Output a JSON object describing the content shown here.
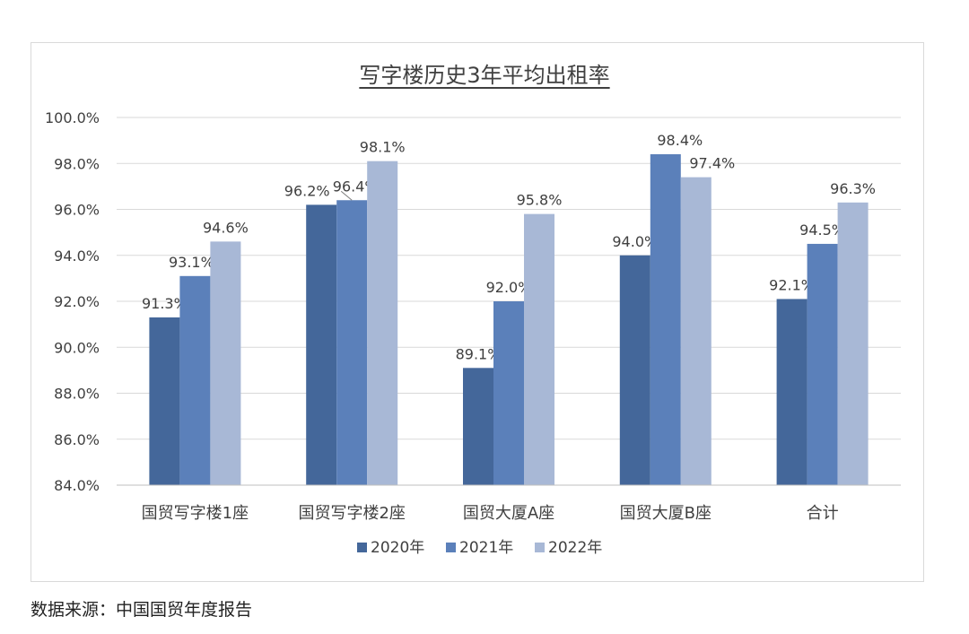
{
  "chart_data": {
    "type": "bar",
    "title": "写字楼历史3年平均出租率",
    "categories": [
      "国贸写字楼1座",
      "国贸写字楼2座",
      "国贸大厦A座",
      "国贸大厦B座",
      "合计"
    ],
    "series": [
      {
        "name": "2020年",
        "color": "#44679a",
        "values": [
          91.3,
          96.2,
          89.1,
          94.0,
          92.1
        ],
        "labels": [
          "91.3%",
          "96.2%",
          "89.1%",
          "94.0%",
          "92.1%"
        ]
      },
      {
        "name": "2021年",
        "color": "#5b80ba",
        "values": [
          93.1,
          96.4,
          92.0,
          98.4,
          94.5
        ],
        "labels": [
          "93.1%",
          "96.4%",
          "92.0%",
          "98.4%",
          "94.5%"
        ]
      },
      {
        "name": "2022年",
        "color": "#a8b8d6",
        "values": [
          94.6,
          98.1,
          95.8,
          97.4,
          96.3
        ],
        "labels": [
          "94.6%",
          "98.1%",
          "95.8%",
          "97.4%",
          "96.3%"
        ]
      }
    ],
    "ylim": [
      84.0,
      100.0
    ],
    "yticks": [
      84.0,
      86.0,
      88.0,
      90.0,
      92.0,
      94.0,
      96.0,
      98.0,
      100.0
    ],
    "ytick_labels": [
      "84.0%",
      "86.0%",
      "88.0%",
      "90.0%",
      "92.0%",
      "94.0%",
      "96.0%",
      "98.0%",
      "100.0%"
    ],
    "grid": true,
    "legend_position": "bottom",
    "xlabel": "",
    "ylabel": ""
  },
  "source_note": "数据来源：中国国贸年度报告"
}
